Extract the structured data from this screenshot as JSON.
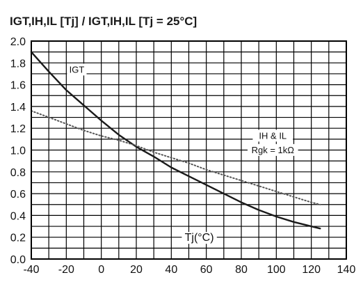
{
  "chart_data": {
    "type": "line",
    "title": "IGT,IH,IL [Tj] / IGT,IH,IL [Tj = 25°C]",
    "xlabel": "Tj(°C)",
    "ylabel": "",
    "xlim": [
      -40,
      140
    ],
    "ylim": [
      0.0,
      2.0
    ],
    "x_ticks": [
      "-40",
      "-20",
      "0",
      "20",
      "40",
      "60",
      "80",
      "100",
      "120",
      "140"
    ],
    "y_ticks": [
      "0.0",
      "0.2",
      "0.4",
      "0.6",
      "0.8",
      "1.0",
      "1.2",
      "1.4",
      "1.6",
      "1.8",
      "2.0"
    ],
    "grid": true,
    "series": [
      {
        "name": "IGT",
        "style": "solid",
        "color": "#1a1a1a",
        "x": [
          -40,
          -30,
          -20,
          -10,
          0,
          10,
          20,
          30,
          40,
          50,
          60,
          70,
          80,
          90,
          100,
          110,
          120,
          125
        ],
        "y": [
          1.9,
          1.72,
          1.55,
          1.41,
          1.27,
          1.14,
          1.03,
          0.94,
          0.84,
          0.76,
          0.68,
          0.6,
          0.52,
          0.45,
          0.39,
          0.34,
          0.3,
          0.28
        ]
      },
      {
        "name": "IH & IL",
        "style": "dotted",
        "color": "#555555",
        "x": [
          -40,
          -30,
          -20,
          -10,
          0,
          10,
          20,
          30,
          40,
          50,
          60,
          70,
          80,
          90,
          100,
          110,
          120,
          125
        ],
        "y": [
          1.36,
          1.3,
          1.24,
          1.18,
          1.13,
          1.09,
          1.04,
          0.98,
          0.93,
          0.88,
          0.82,
          0.77,
          0.72,
          0.67,
          0.62,
          0.57,
          0.52,
          0.5
        ]
      }
    ],
    "annotations": [
      {
        "text": "IGT"
      },
      {
        "text": "IH & IL"
      },
      {
        "text": "Rgk = 1kΩ"
      }
    ]
  }
}
